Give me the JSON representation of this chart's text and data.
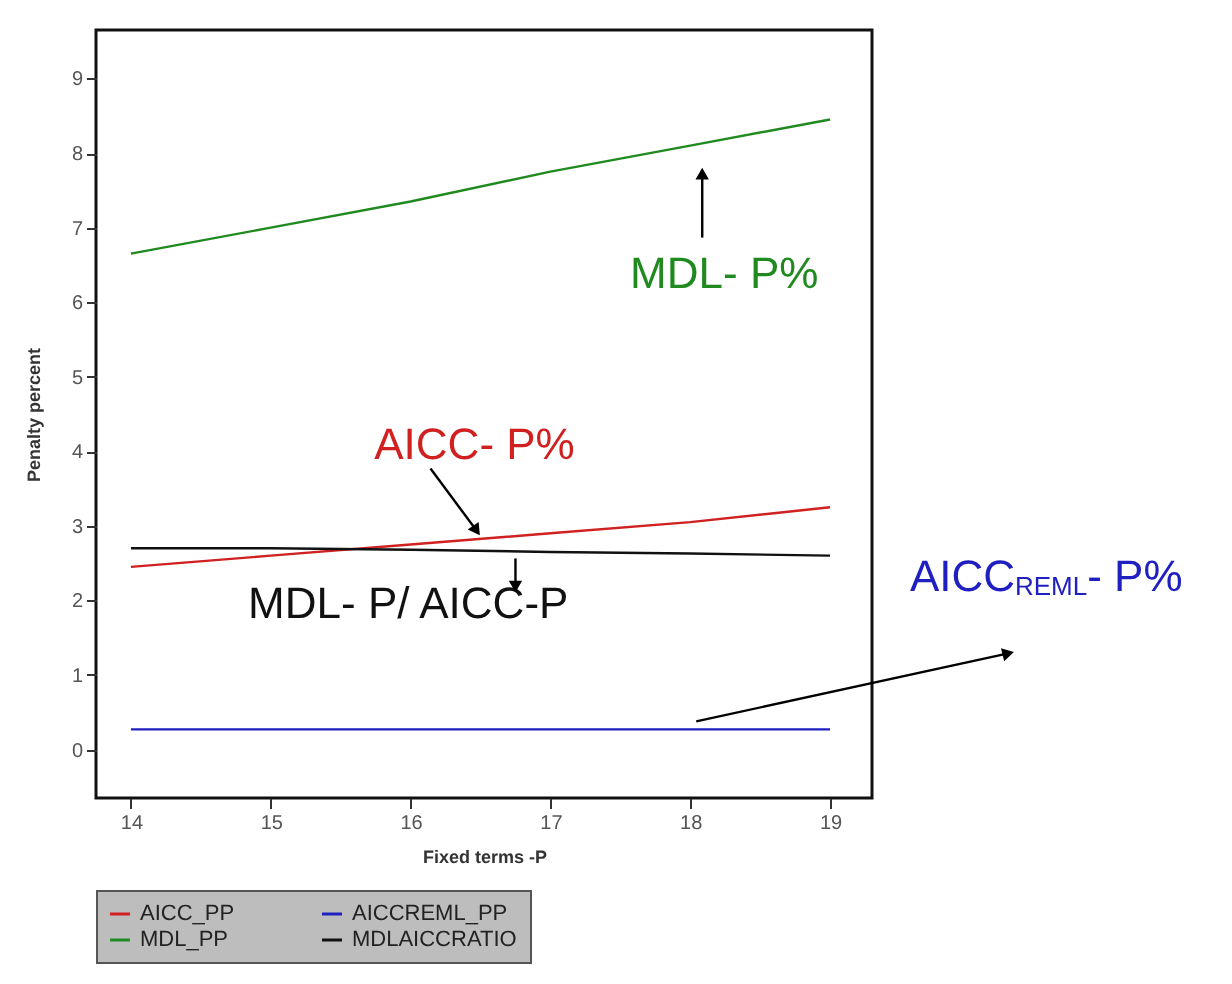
{
  "chart_data": {
    "type": "line",
    "xlabel": "Fixed terms -P",
    "ylabel": "Penalty percent",
    "x": [
      14,
      15,
      16,
      17,
      18,
      19
    ],
    "xlim": [
      13.75,
      19.3
    ],
    "xticks": [
      14,
      15,
      16,
      17,
      18,
      19
    ],
    "ylim": [
      -0.65,
      9.65
    ],
    "yticks": [
      0,
      1,
      2,
      3,
      4,
      5,
      6,
      7,
      8,
      9
    ],
    "series": [
      {
        "name": "AICC_PP",
        "color": "#d02020",
        "values": [
          2.45,
          2.6,
          2.75,
          2.9,
          3.05,
          3.25
        ]
      },
      {
        "name": "AICCREML_PP",
        "color": "#2020c0",
        "values": [
          0.27,
          0.27,
          0.27,
          0.27,
          0.27,
          0.27
        ]
      },
      {
        "name": "MDL_PP",
        "color": "#208a20",
        "values": [
          6.65,
          7.0,
          7.35,
          7.75,
          8.1,
          8.45
        ]
      },
      {
        "name": "MDLAICCRATIO",
        "color": "#111111",
        "values": [
          2.7,
          2.7,
          2.68,
          2.65,
          2.63,
          2.6
        ]
      }
    ],
    "annotations": [
      {
        "text": "MDL- P%",
        "x": 18,
        "y": 8.1
      },
      {
        "text": "AICC- P%",
        "x": 16.5,
        "y": 2.83
      },
      {
        "text": "MDL- P/ AICC-P",
        "x": 16.75,
        "y": 2.67
      },
      {
        "text": "AICC$_{REML}$- P%",
        "x": 18,
        "y": 0.27
      }
    ],
    "grid": false,
    "legend": "bottom"
  }
}
